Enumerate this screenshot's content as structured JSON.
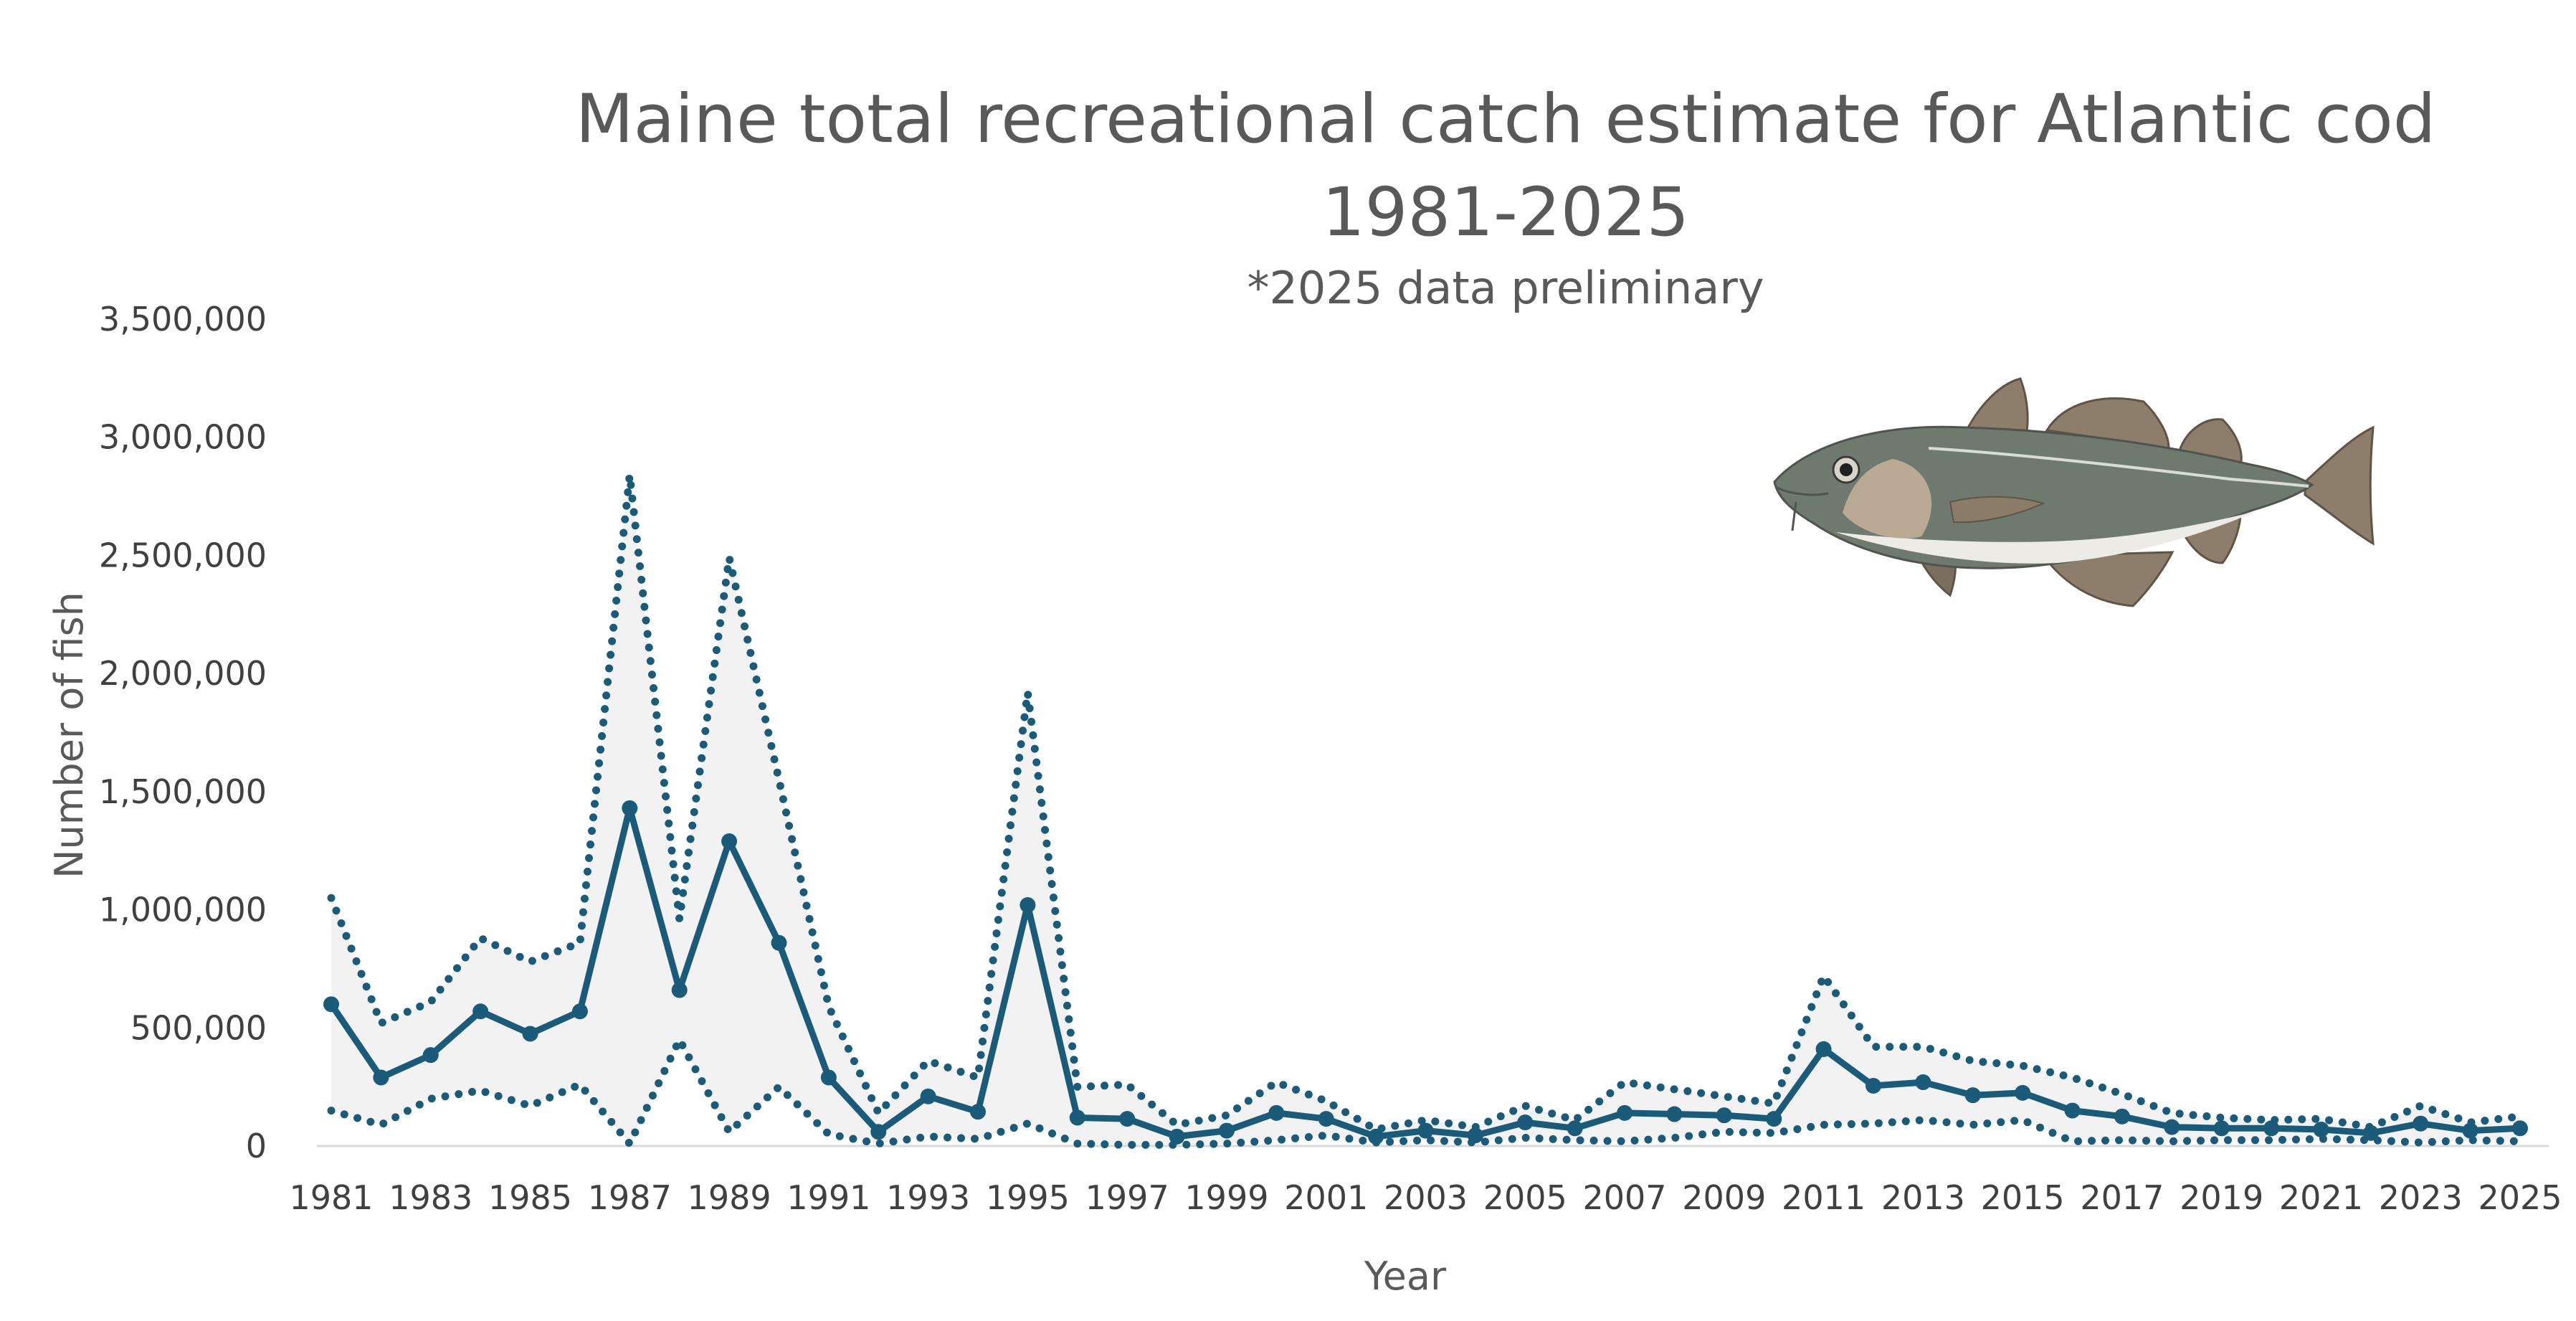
{
  "chart_data": {
    "type": "line",
    "title_lines": [
      "Maine total recreational catch estimate for Atlantic cod",
      "1981-2025"
    ],
    "subtitle": "*2025 data preliminary",
    "xlabel": "Year",
    "ylabel": "Number of fish",
    "ylim": [
      0,
      3500000
    ],
    "yticks": [
      0,
      500000,
      1000000,
      1500000,
      2000000,
      2500000,
      3000000,
      3500000
    ],
    "ytick_labels": [
      "0",
      "500,000",
      "1,000,000",
      "1,500,000",
      "2,000,000",
      "2,500,000",
      "3,000,000",
      "3,500,000"
    ],
    "xtick_labels": [
      "1981",
      "1983",
      "1985",
      "1987",
      "1989",
      "1991",
      "1993",
      "1995",
      "1997",
      "1999",
      "2001",
      "2003",
      "2005",
      "2007",
      "2009",
      "2011",
      "2013",
      "2015",
      "2017",
      "2019",
      "2021",
      "2023",
      "2025"
    ],
    "x": [
      1981,
      1982,
      1983,
      1984,
      1985,
      1986,
      1987,
      1988,
      1989,
      1990,
      1991,
      1992,
      1993,
      1994,
      1995,
      1996,
      1997,
      1998,
      1999,
      2000,
      2001,
      2002,
      2003,
      2004,
      2005,
      2006,
      2007,
      2008,
      2009,
      2010,
      2011,
      2012,
      2013,
      2014,
      2015,
      2016,
      2017,
      2018,
      2019,
      2020,
      2021,
      2022,
      2023,
      2024,
      2025
    ],
    "series": [
      {
        "role": "estimate",
        "values": [
          600000,
          290000,
          385000,
          570000,
          475000,
          570000,
          1430000,
          660000,
          1290000,
          860000,
          290000,
          60000,
          210000,
          145000,
          1020000,
          120000,
          115000,
          40000,
          65000,
          140000,
          115000,
          40000,
          65000,
          45000,
          100000,
          75000,
          140000,
          135000,
          130000,
          115000,
          410000,
          255000,
          270000,
          215000,
          225000,
          150000,
          125000,
          80000,
          75000,
          75000,
          70000,
          55000,
          95000,
          65000,
          75000
        ]
      },
      {
        "role": "upper bound",
        "values": [
          1050000,
          520000,
          610000,
          880000,
          780000,
          860000,
          2840000,
          960000,
          2490000,
          1550000,
          590000,
          140000,
          360000,
          290000,
          1920000,
          250000,
          260000,
          90000,
          130000,
          270000,
          190000,
          70000,
          110000,
          80000,
          170000,
          110000,
          270000,
          240000,
          210000,
          180000,
          720000,
          420000,
          420000,
          360000,
          340000,
          290000,
          220000,
          140000,
          120000,
          110000,
          115000,
          80000,
          170000,
          100000,
          125000
        ]
      },
      {
        "role": "lower bound",
        "values": [
          150000,
          90000,
          200000,
          235000,
          170000,
          260000,
          10000,
          450000,
          60000,
          250000,
          50000,
          10000,
          40000,
          30000,
          95000,
          10000,
          5000,
          5000,
          10000,
          25000,
          45000,
          15000,
          25000,
          15000,
          35000,
          25000,
          20000,
          35000,
          60000,
          55000,
          90000,
          95000,
          110000,
          90000,
          110000,
          20000,
          25000,
          20000,
          25000,
          25000,
          30000,
          25000,
          15000,
          25000,
          20000
        ]
      }
    ],
    "colors": {
      "line": "#1A5B7A",
      "band": "#F2F2F2",
      "axis": "#D9D9D9"
    },
    "legend": "none",
    "grid": false,
    "illustration": "atlantic-cod-image"
  }
}
